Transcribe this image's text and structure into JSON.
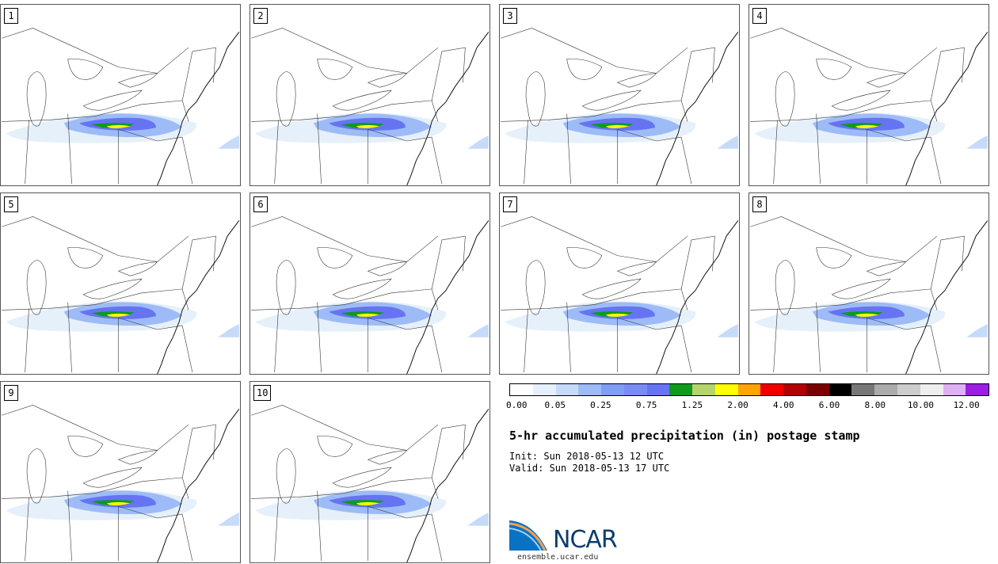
{
  "title": "5-hr accumulated precipitation (in) postage stamp",
  "init_text": "Init: Sun 2018-05-13 12 UTC",
  "valid_text": "Valid: Sun 2018-05-13 17 UTC",
  "panels": [
    {
      "label": "1"
    },
    {
      "label": "2"
    },
    {
      "label": "3"
    },
    {
      "label": "4"
    },
    {
      "label": "5"
    },
    {
      "label": "6"
    },
    {
      "label": "7"
    },
    {
      "label": "8"
    },
    {
      "label": "9"
    },
    {
      "label": "10"
    }
  ],
  "colorbar": {
    "colors": [
      "#ffffff",
      "#e6f0fb",
      "#c6dbfa",
      "#9dbbf7",
      "#7f9ff5",
      "#7a8cf3",
      "#6674f2",
      "#0f9a1e",
      "#b4d56b",
      "#ffff00",
      "#ffa500",
      "#ee0000",
      "#b30000",
      "#7a0000",
      "#000000",
      "#777777",
      "#aaaaaa",
      "#cccccc",
      "#eeeeee",
      "#e0b0f5",
      "#9a1fe0"
    ],
    "tick_labels": [
      "0.00",
      "0.05",
      "0.25",
      "0.75",
      "1.25",
      "2.00",
      "4.00",
      "6.00",
      "8.00",
      "10.00",
      "12.00"
    ]
  },
  "logo": {
    "text": "NCAR",
    "url": "ensemble.ucar.edu"
  }
}
